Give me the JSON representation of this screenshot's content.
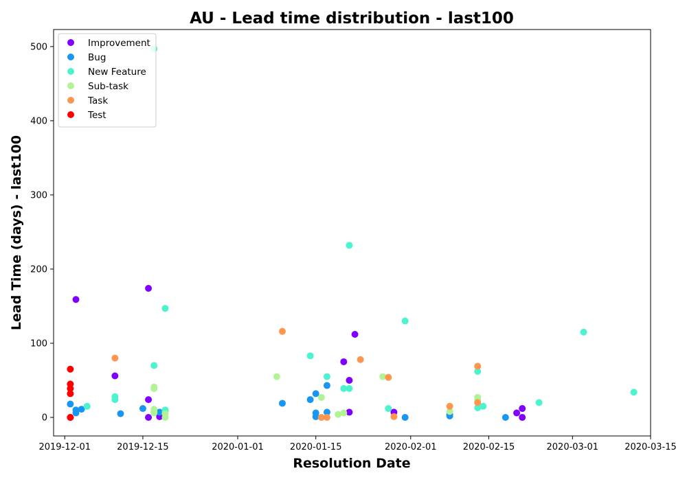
{
  "chart_data": {
    "type": "scatter",
    "title": "AU - Lead time distribution - last100",
    "xlabel": "Resolution Date",
    "ylabel": "Lead Time (days) - last100",
    "x_ticks": [
      "2019-12-01",
      "2019-12-15",
      "2020-01-01",
      "2020-01-15",
      "2020-02-01",
      "2020-02-15",
      "2020-03-01",
      "2020-03-15"
    ],
    "y_ticks": [
      0,
      100,
      200,
      300,
      400,
      500
    ],
    "xlim": [
      "2019-11-29",
      "2020-03-15"
    ],
    "ylim": [
      -25,
      523
    ],
    "grid": false,
    "legend_position": "top-left",
    "series": [
      {
        "name": "Improvement",
        "color": "#8000ff",
        "points": [
          [
            "2019-12-03",
            159
          ],
          [
            "2019-12-10",
            56
          ],
          [
            "2019-12-16",
            174
          ],
          [
            "2019-12-16",
            24
          ],
          [
            "2019-12-16",
            0
          ],
          [
            "2019-12-18",
            1
          ],
          [
            "2020-01-20",
            75
          ],
          [
            "2020-01-21",
            50
          ],
          [
            "2020-01-21",
            7
          ],
          [
            "2020-01-22",
            112
          ],
          [
            "2020-01-29",
            7
          ],
          [
            "2020-02-20",
            6
          ],
          [
            "2020-02-21",
            12
          ],
          [
            "2020-02-21",
            0
          ]
        ]
      },
      {
        "name": "Bug",
        "color": "#1996f3",
        "points": [
          [
            "2019-12-02",
            18
          ],
          [
            "2019-12-03",
            10
          ],
          [
            "2019-12-03",
            6
          ],
          [
            "2019-12-04",
            11
          ],
          [
            "2019-12-11",
            5
          ],
          [
            "2019-12-15",
            12
          ],
          [
            "2019-12-18",
            7
          ],
          [
            "2020-01-09",
            19
          ],
          [
            "2020-01-14",
            24
          ],
          [
            "2020-01-15",
            32
          ],
          [
            "2020-01-15",
            6
          ],
          [
            "2020-01-15",
            1
          ],
          [
            "2020-01-17",
            43
          ],
          [
            "2020-01-17",
            7
          ],
          [
            "2020-01-31",
            0
          ],
          [
            "2020-02-08",
            2
          ],
          [
            "2020-02-08",
            4
          ],
          [
            "2020-02-18",
            0
          ]
        ]
      },
      {
        "name": "New Feature",
        "color": "#4df3ce",
        "points": [
          [
            "2019-12-05",
            15
          ],
          [
            "2019-12-10",
            28
          ],
          [
            "2019-12-10",
            24
          ],
          [
            "2019-12-17",
            497
          ],
          [
            "2019-12-17",
            70
          ],
          [
            "2019-12-19",
            147
          ],
          [
            "2019-12-19",
            10
          ],
          [
            "2019-12-19",
            8
          ],
          [
            "2020-01-14",
            83
          ],
          [
            "2020-01-17",
            55
          ],
          [
            "2020-01-20",
            39
          ],
          [
            "2020-01-21",
            232
          ],
          [
            "2020-01-21",
            39
          ],
          [
            "2020-01-28",
            12
          ],
          [
            "2020-01-31",
            130
          ],
          [
            "2020-02-13",
            62
          ],
          [
            "2020-02-13",
            13
          ],
          [
            "2020-02-14",
            15
          ],
          [
            "2020-02-24",
            20
          ],
          [
            "2020-03-03",
            115
          ],
          [
            "2020-03-12",
            34
          ]
        ]
      },
      {
        "name": "Sub-task",
        "color": "#b2f396",
        "points": [
          [
            "2019-12-17",
            41
          ],
          [
            "2019-12-17",
            39
          ],
          [
            "2019-12-17",
            11
          ],
          [
            "2019-12-17",
            8
          ],
          [
            "2019-12-17",
            6
          ],
          [
            "2019-12-19",
            5
          ],
          [
            "2019-12-19",
            0
          ],
          [
            "2020-01-08",
            55
          ],
          [
            "2020-01-16",
            27
          ],
          [
            "2020-01-16",
            0
          ],
          [
            "2020-01-19",
            4
          ],
          [
            "2020-01-20",
            6
          ],
          [
            "2020-01-27",
            55
          ],
          [
            "2020-02-08",
            8
          ],
          [
            "2020-02-13",
            27
          ],
          [
            "2020-02-13",
            24
          ]
        ]
      },
      {
        "name": "Task",
        "color": "#ff964f",
        "points": [
          [
            "2019-12-10",
            80
          ],
          [
            "2020-01-09",
            116
          ],
          [
            "2020-01-16",
            0
          ],
          [
            "2020-01-17",
            0
          ],
          [
            "2020-01-23",
            78
          ],
          [
            "2020-01-28",
            54
          ],
          [
            "2020-01-29",
            1
          ],
          [
            "2020-02-08",
            15
          ],
          [
            "2020-02-13",
            69
          ],
          [
            "2020-02-13",
            20
          ]
        ]
      },
      {
        "name": "Test",
        "color": "#ff0000",
        "points": [
          [
            "2019-12-02",
            65
          ],
          [
            "2019-12-02",
            45
          ],
          [
            "2019-12-02",
            39
          ],
          [
            "2019-12-02",
            32
          ],
          [
            "2019-12-02",
            0
          ],
          [
            "2019-12-02",
            0
          ]
        ]
      }
    ]
  }
}
